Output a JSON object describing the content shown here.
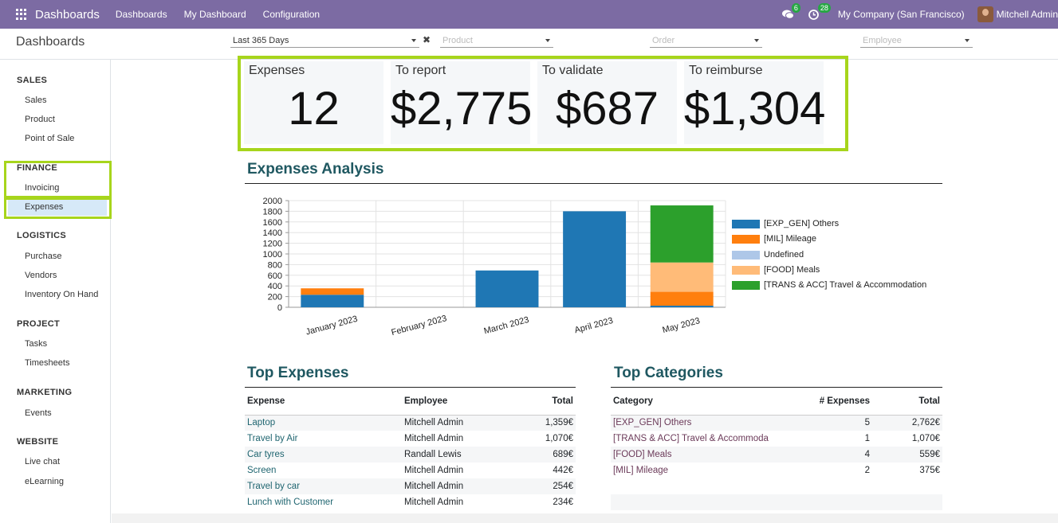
{
  "navbar": {
    "app_title": "Dashboards",
    "menu": [
      "Dashboards",
      "My Dashboard",
      "Configuration"
    ],
    "messages_count": "6",
    "activities_count": "28",
    "company": "My Company (San Francisco)",
    "user": "Mitchell Admin"
  },
  "control": {
    "breadcrumb": "Dashboards",
    "date_filter": "Last 365 Days",
    "product_placeholder": "Product",
    "order_placeholder": "Order",
    "employee_placeholder": "Employee"
  },
  "sidebar": {
    "sections": [
      {
        "title": "SALES",
        "items": [
          "Sales",
          "Product",
          "Point of Sale"
        ]
      },
      {
        "title": "FINANCE",
        "items": [
          "Invoicing",
          "Expenses"
        ]
      },
      {
        "title": "LOGISTICS",
        "items": [
          "Purchase",
          "Vendors",
          "Inventory On Hand"
        ]
      },
      {
        "title": "PROJECT",
        "items": [
          "Tasks",
          "Timesheets"
        ]
      },
      {
        "title": "MARKETING",
        "items": [
          "Events"
        ]
      },
      {
        "title": "WEBSITE",
        "items": [
          "Live chat",
          "eLearning"
        ]
      }
    ],
    "active_item": "Expenses"
  },
  "kpis": [
    {
      "label": "Expenses",
      "value": "12"
    },
    {
      "label": "To report",
      "value": "$2,775"
    },
    {
      "label": "To validate",
      "value": "$687"
    },
    {
      "label": "To reimburse",
      "value": "$1,304"
    }
  ],
  "analysis_title": "Expenses Analysis",
  "chart_data": {
    "type": "bar",
    "stacked": true,
    "categories": [
      "January 2023",
      "February 2023",
      "March 2023",
      "April 2023",
      "May 2023"
    ],
    "series": [
      {
        "name": "[EXP_GEN] Others",
        "color": "#1f77b4",
        "values": [
          235,
          0,
          690,
          1800,
          30
        ]
      },
      {
        "name": "[MIL] Mileage",
        "color": "#ff7f0e",
        "values": [
          120,
          0,
          0,
          0,
          260
        ]
      },
      {
        "name": "Undefined",
        "color": "#aec7e8",
        "values": [
          0,
          0,
          0,
          0,
          0
        ]
      },
      {
        "name": "[FOOD] Meals",
        "color": "#ffbb78",
        "values": [
          0,
          0,
          0,
          0,
          550
        ]
      },
      {
        "name": "[TRANS & ACC] Travel & Accommodation",
        "color": "#2ca02c",
        "values": [
          0,
          0,
          0,
          0,
          1070
        ]
      }
    ],
    "yticks": [
      0,
      200,
      400,
      600,
      800,
      1000,
      1200,
      1400,
      1600,
      1800,
      2000
    ],
    "ylim": [
      0,
      2000
    ],
    "grid": true,
    "legend_position": "right"
  },
  "top_expenses": {
    "title": "Top Expenses",
    "columns": [
      "Expense",
      "Employee",
      "Total"
    ],
    "rows": [
      [
        "Laptop",
        "Mitchell Admin",
        "1,359€"
      ],
      [
        "Travel by Air",
        "Mitchell Admin",
        "1,070€"
      ],
      [
        "Car tyres",
        "Randall Lewis",
        "689€"
      ],
      [
        "Screen",
        "Mitchell Admin",
        "442€"
      ],
      [
        "Travel by car",
        "Mitchell Admin",
        "254€"
      ],
      [
        "Lunch with Customer",
        "Mitchell Admin",
        "234€"
      ]
    ]
  },
  "top_categories": {
    "title": "Top Categories",
    "columns": [
      "Category",
      "# Expenses",
      "Total"
    ],
    "rows": [
      [
        "[EXP_GEN] Others",
        "5",
        "2,762€"
      ],
      [
        "[TRANS & ACC] Travel & Accommoda",
        "1",
        "1,070€"
      ],
      [
        "[FOOD] Meals",
        "4",
        "559€"
      ],
      [
        "[MIL] Mileage",
        "2",
        "375€"
      ]
    ]
  }
}
